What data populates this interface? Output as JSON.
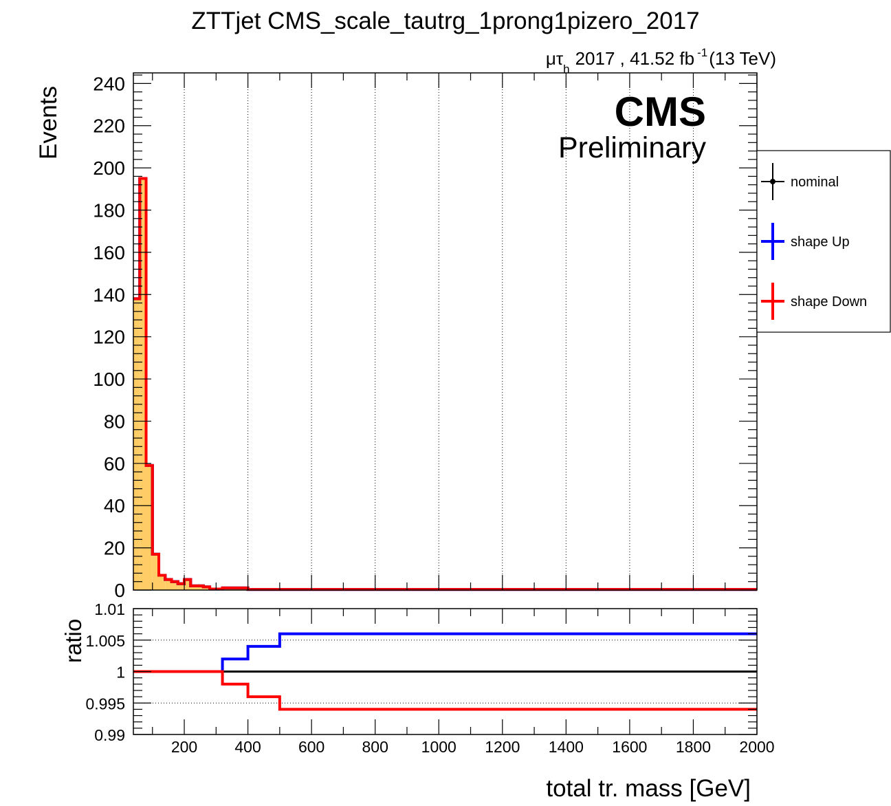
{
  "title": "ZTTjet CMS_scale_tautrg_1prong1pizero_2017",
  "lumi": {
    "channel_mu": "μ",
    "channel_tau": "τ",
    "channel_sub": "h",
    "rest": "2017 , 41.52 fb",
    "sup": "-1",
    "energy": "(13 TeV)"
  },
  "cms_label": "CMS",
  "preliminary_label": "Preliminary",
  "legend": [
    {
      "label": "nominal",
      "color": "#000000",
      "marker": true
    },
    {
      "label": "shape Up",
      "color": "#0000ff",
      "marker": false
    },
    {
      "label": "shape Down",
      "color": "#ff0000",
      "marker": false
    }
  ],
  "colors": {
    "fill": "#ffcc66",
    "nominal": "#000000",
    "up": "#0000ff",
    "down": "#ff0000"
  },
  "chart_data": [
    {
      "type": "area",
      "ylabel": "Events",
      "xlim": [
        40,
        2000
      ],
      "ylim": [
        0,
        245
      ],
      "yticks": [
        0,
        20,
        40,
        60,
        80,
        100,
        120,
        140,
        160,
        180,
        200,
        220,
        240
      ],
      "grid_x": true,
      "bin_edges": [
        40,
        60,
        80,
        100,
        120,
        140,
        160,
        180,
        200,
        220,
        240,
        260,
        280,
        320,
        400,
        500,
        2000
      ],
      "series": [
        {
          "name": "nominal",
          "values": [
            138,
            195,
            59,
            17,
            7,
            5,
            4,
            3,
            5,
            2,
            2,
            1.5,
            0.5,
            1,
            0.3,
            0.3
          ]
        },
        {
          "name": "shape Up",
          "values": [
            138,
            195,
            59,
            17,
            7,
            5,
            4,
            3,
            5,
            2,
            2,
            1.5,
            0.5,
            1,
            0.3,
            0.3
          ]
        },
        {
          "name": "shape Down",
          "values": [
            138,
            195,
            59,
            17,
            7,
            5,
            4,
            3,
            5,
            2,
            2,
            1.5,
            0.5,
            1,
            0.3,
            0.3
          ]
        }
      ]
    },
    {
      "type": "line",
      "ylabel": "ratio",
      "xlabel": "total tr. mass [GeV]",
      "xlim": [
        40,
        2000
      ],
      "ylim": [
        0.99,
        1.01
      ],
      "yticks": [
        "0.99",
        "0.995",
        "1",
        "1.005",
        "1.01"
      ],
      "xticks": [
        200,
        400,
        600,
        800,
        1000,
        1200,
        1400,
        1600,
        1800,
        2000
      ],
      "grid_y": true,
      "bin_edges": [
        40,
        320,
        400,
        500,
        2000
      ],
      "series": [
        {
          "name": "nominal",
          "values": [
            1.0,
            1.0,
            1.0,
            1.0
          ]
        },
        {
          "name": "shape Up",
          "values": [
            1.0,
            1.002,
            1.004,
            1.006
          ]
        },
        {
          "name": "shape Down",
          "values": [
            1.0,
            0.998,
            0.996,
            0.994
          ]
        }
      ]
    }
  ]
}
